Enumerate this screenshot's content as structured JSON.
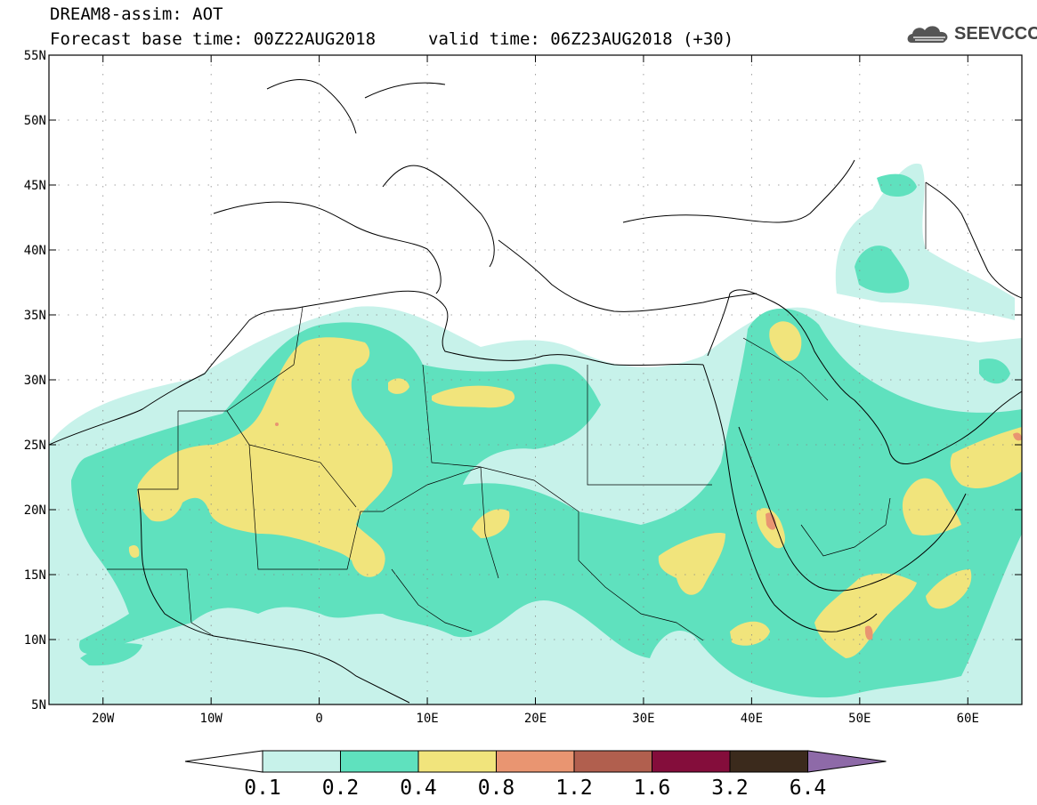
{
  "header": {
    "line1": "DREAM8-assim: AOT",
    "line2": "Forecast base time: 00Z22AUG2018",
    "valid": "valid time: 06Z23AUG2018 (+30)"
  },
  "logo": {
    "text": "SEEVCCC",
    "icon": "cloud-logo-icon"
  },
  "map": {
    "lon_range": [
      -25,
      65
    ],
    "lat_range": [
      5,
      55
    ],
    "lat_ticks": [
      {
        "v": 55,
        "label": "55N"
      },
      {
        "v": 50,
        "label": "50N"
      },
      {
        "v": 45,
        "label": "45N"
      },
      {
        "v": 40,
        "label": "40N"
      },
      {
        "v": 35,
        "label": "35N"
      },
      {
        "v": 30,
        "label": "30N"
      },
      {
        "v": 25,
        "label": "25N"
      },
      {
        "v": 20,
        "label": "20N"
      },
      {
        "v": 15,
        "label": "15N"
      },
      {
        "v": 10,
        "label": "10N"
      },
      {
        "v": 5,
        "label": "5N"
      }
    ],
    "lon_ticks": [
      {
        "v": -20,
        "label": "20W"
      },
      {
        "v": -10,
        "label": "10W"
      },
      {
        "v": 0,
        "label": "0"
      },
      {
        "v": 10,
        "label": "10E"
      },
      {
        "v": 20,
        "label": "20E"
      },
      {
        "v": 30,
        "label": "30E"
      },
      {
        "v": 40,
        "label": "40E"
      },
      {
        "v": 50,
        "label": "50E"
      },
      {
        "v": 60,
        "label": "60E"
      }
    ]
  },
  "colorbar": {
    "levels": [
      "0.1",
      "0.2",
      "0.4",
      "0.8",
      "1.2",
      "1.6",
      "3.2",
      "6.4"
    ],
    "colors": [
      "#c7f2ea",
      "#5fe1be",
      "#f1e47c",
      "#e99571",
      "#b15f4e",
      "#840d3b",
      "#3b2a1c",
      "#8e6aa8"
    ],
    "low_color": "#ffffff"
  }
}
